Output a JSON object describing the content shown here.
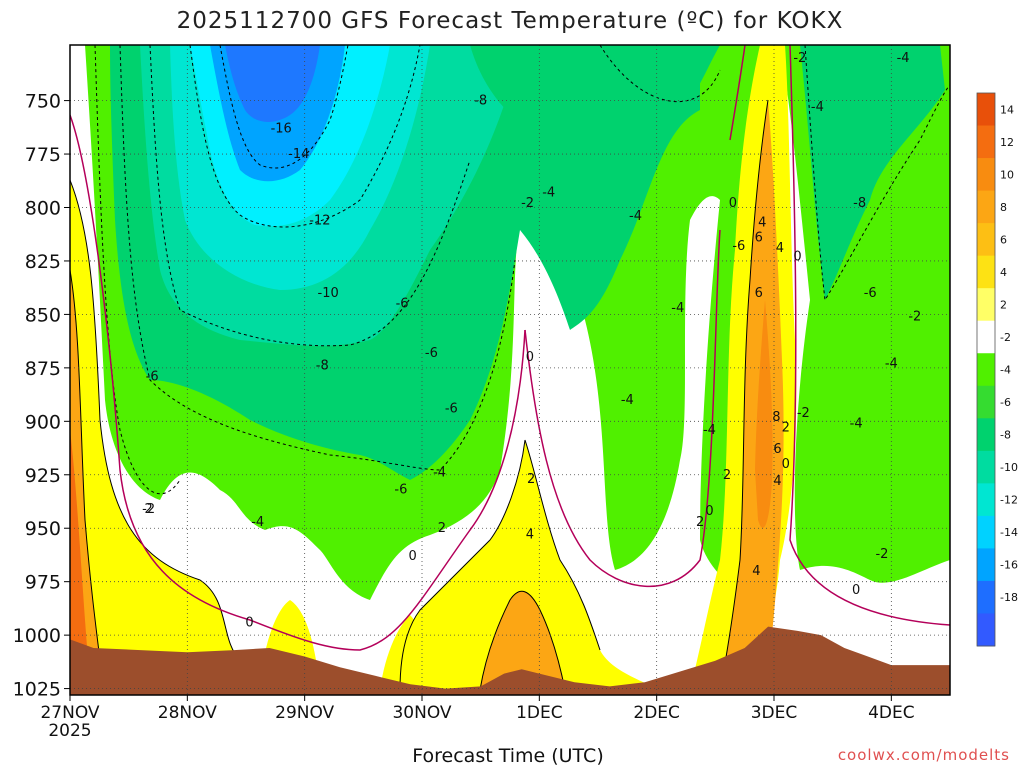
{
  "chart_data": {
    "type": "contour",
    "title": "2025112700 GFS Forecast Temperature (ºC) for KOKX",
    "xlabel": "Forecast Time (UTC)",
    "ylabel": "",
    "credit": "coolwx.com/modelts",
    "x_ticks": [
      "27NOV",
      "28NOV",
      "29NOV",
      "30NOV",
      "1DEC",
      "2DEC",
      "3DEC",
      "4DEC"
    ],
    "x_year_label": "2025",
    "x_range_days": [
      0,
      7.5
    ],
    "y_ticks": [
      750,
      775,
      800,
      825,
      850,
      875,
      900,
      925,
      950,
      975,
      1000,
      1025
    ],
    "y_range_hpa": [
      724,
      1028
    ],
    "colorbar": {
      "labels": [
        14,
        12,
        10,
        8,
        6,
        4,
        2,
        -2,
        -4,
        -6,
        -8,
        -10,
        -12,
        -14,
        -16,
        -18
      ],
      "colors": [
        "#e8500a",
        "#f46d10",
        "#f88c10",
        "#fca614",
        "#fdbf14",
        "#fde214",
        "#ffff66",
        "#ffffff",
        "#50f000",
        "#35dc30",
        "#00d26e",
        "#00dca0",
        "#00e6d2",
        "#00d2ff",
        "#00a4ff",
        "#1e6eff",
        "#325aff"
      ]
    },
    "surface_pressure": [
      {
        "day": 0.0,
        "hpa": 1002
      },
      {
        "day": 0.2,
        "hpa": 1006
      },
      {
        "day": 0.6,
        "hpa": 1007
      },
      {
        "day": 1.0,
        "hpa": 1008
      },
      {
        "day": 1.4,
        "hpa": 1007
      },
      {
        "day": 1.7,
        "hpa": 1006
      },
      {
        "day": 2.0,
        "hpa": 1010
      },
      {
        "day": 2.3,
        "hpa": 1015
      },
      {
        "day": 2.6,
        "hpa": 1019
      },
      {
        "day": 2.9,
        "hpa": 1023
      },
      {
        "day": 3.2,
        "hpa": 1025
      },
      {
        "day": 3.5,
        "hpa": 1024
      },
      {
        "day": 3.7,
        "hpa": 1018
      },
      {
        "day": 3.85,
        "hpa": 1016
      },
      {
        "day": 4.0,
        "hpa": 1018
      },
      {
        "day": 4.3,
        "hpa": 1022
      },
      {
        "day": 4.6,
        "hpa": 1024
      },
      {
        "day": 4.9,
        "hpa": 1022
      },
      {
        "day": 5.2,
        "hpa": 1017
      },
      {
        "day": 5.5,
        "hpa": 1012
      },
      {
        "day": 5.75,
        "hpa": 1006
      },
      {
        "day": 5.95,
        "hpa": 996
      },
      {
        "day": 6.2,
        "hpa": 998
      },
      {
        "day": 6.4,
        "hpa": 1000
      },
      {
        "day": 6.6,
        "hpa": 1006
      },
      {
        "day": 6.8,
        "hpa": 1010
      },
      {
        "day": 7.0,
        "hpa": 1014
      },
      {
        "day": 7.2,
        "hpa": 1014
      },
      {
        "day": 7.5,
        "hpa": 1014
      }
    ],
    "contour_labels": [
      {
        "text": "-16",
        "day": 1.8,
        "hpa": 763
      },
      {
        "text": "-14",
        "day": 1.95,
        "hpa": 775
      },
      {
        "text": "-12",
        "day": 2.13,
        "hpa": 806
      },
      {
        "text": "-10",
        "day": 2.2,
        "hpa": 840
      },
      {
        "text": "-8",
        "day": 2.15,
        "hpa": 874
      },
      {
        "text": "-8",
        "day": 3.5,
        "hpa": 750
      },
      {
        "text": "-6",
        "day": 0.7,
        "hpa": 879
      },
      {
        "text": "-6",
        "day": 2.82,
        "hpa": 932
      },
      {
        "text": "-6",
        "day": 2.83,
        "hpa": 845
      },
      {
        "text": "-6",
        "day": 3.08,
        "hpa": 868
      },
      {
        "text": "-6",
        "day": 3.25,
        "hpa": 894
      },
      {
        "text": "-6",
        "day": 5.7,
        "hpa": 818
      },
      {
        "text": "-8",
        "day": 6.73,
        "hpa": 798
      },
      {
        "text": "-4",
        "day": 1.6,
        "hpa": 947
      },
      {
        "text": "-4",
        "day": 3.15,
        "hpa": 924
      },
      {
        "text": "-4",
        "day": 4.08,
        "hpa": 793
      },
      {
        "text": "-4",
        "day": 4.82,
        "hpa": 804
      },
      {
        "text": "-4",
        "day": 4.75,
        "hpa": 890
      },
      {
        "text": "-4",
        "day": 5.18,
        "hpa": 847
      },
      {
        "text": "-4",
        "day": 5.45,
        "hpa": 904
      },
      {
        "text": "-4",
        "day": 6.37,
        "hpa": 753
      },
      {
        "text": "-4",
        "day": 7.0,
        "hpa": 873
      },
      {
        "text": "-4",
        "day": 7.1,
        "hpa": 730
      },
      {
        "text": "-4",
        "day": 6.7,
        "hpa": 901
      },
      {
        "text": "-2",
        "day": 0.67,
        "hpa": 941
      },
      {
        "text": "-2",
        "day": 3.9,
        "hpa": 798
      },
      {
        "text": "-2",
        "day": 6.22,
        "hpa": 730
      },
      {
        "text": "-2",
        "day": 6.25,
        "hpa": 896
      },
      {
        "text": "-2",
        "day": 7.2,
        "hpa": 851
      },
      {
        "text": "-2",
        "day": 6.92,
        "hpa": 962
      },
      {
        "text": "-6",
        "day": 6.82,
        "hpa": 840
      },
      {
        "text": "0",
        "day": 1.53,
        "hpa": 994
      },
      {
        "text": "0",
        "day": 2.92,
        "hpa": 963
      },
      {
        "text": "0",
        "day": 3.92,
        "hpa": 870
      },
      {
        "text": "0",
        "day": 5.45,
        "hpa": 942
      },
      {
        "text": "0",
        "day": 5.65,
        "hpa": 798
      },
      {
        "text": "0",
        "day": 6.2,
        "hpa": 823
      },
      {
        "text": "0",
        "day": 6.1,
        "hpa": 920
      },
      {
        "text": "0",
        "day": 6.7,
        "hpa": 979
      },
      {
        "text": "2",
        "day": 0.67,
        "hpa": 941
      },
      {
        "text": "2",
        "day": 3.17,
        "hpa": 950
      },
      {
        "text": "2",
        "day": 3.93,
        "hpa": 927
      },
      {
        "text": "2",
        "day": 5.37,
        "hpa": 947
      },
      {
        "text": "2",
        "day": 5.6,
        "hpa": 925
      },
      {
        "text": "2",
        "day": 6.1,
        "hpa": 903
      },
      {
        "text": "4",
        "day": 3.92,
        "hpa": 953
      },
      {
        "text": "4",
        "day": 5.9,
        "hpa": 807
      },
      {
        "text": "4",
        "day": 5.85,
        "hpa": 970
      },
      {
        "text": "4",
        "day": 6.05,
        "hpa": 819
      },
      {
        "text": "4",
        "day": 6.03,
        "hpa": 928
      },
      {
        "text": "6",
        "day": 5.87,
        "hpa": 840
      },
      {
        "text": "6",
        "day": 5.87,
        "hpa": 814
      },
      {
        "text": "6",
        "day": 6.03,
        "hpa": 913
      },
      {
        "text": "8",
        "day": 6.02,
        "hpa": 898
      }
    ]
  }
}
